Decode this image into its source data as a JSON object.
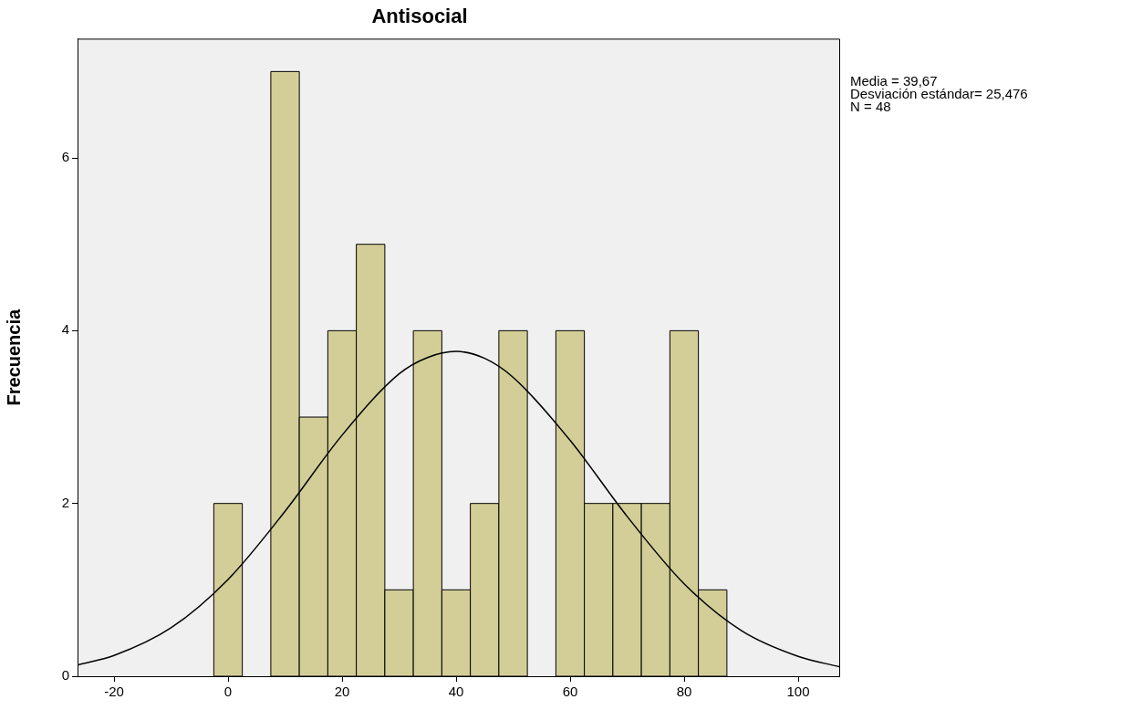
{
  "chart_data": {
    "type": "histogram",
    "title": "Antisocial",
    "ylabel": "Frecuencia",
    "xlim": [
      -26.4,
      107.2
    ],
    "xticks": [
      -20,
      0,
      20,
      40,
      60,
      80,
      100
    ],
    "ylim": [
      0,
      7.38
    ],
    "yticks": [
      0,
      2,
      4,
      6
    ],
    "grid": false,
    "legend": false,
    "annotations": [
      "Media = 39,67",
      "Desviación estándar= 25,476",
      "N = 48"
    ],
    "series": [
      {
        "type": "histogram",
        "color": "#d3ce97",
        "bins": [
          -2.5,
          2.5,
          7.5,
          12.5,
          17.5,
          22.5,
          27.5,
          32.5,
          37.5,
          42.5,
          47.5,
          52.5,
          57.5,
          62.5,
          67.5,
          72.5,
          77.5,
          82.5,
          87.5
        ],
        "values": [
          2,
          0,
          7,
          3,
          4,
          5,
          1,
          4,
          1,
          2,
          4,
          0,
          4,
          2,
          2,
          2,
          4,
          1
        ]
      },
      {
        "type": "line",
        "color": "#000000",
        "x": [
          -26.4,
          -20,
          -10,
          0,
          10,
          20,
          30,
          35,
          40,
          45,
          50,
          60,
          70,
          80,
          90,
          100,
          107.2
        ],
        "values": [
          0.13,
          0.24,
          0.56,
          1.12,
          1.91,
          2.79,
          3.5,
          3.69,
          3.76,
          3.68,
          3.46,
          2.73,
          1.85,
          1.07,
          0.53,
          0.23,
          0.11
        ]
      }
    ]
  }
}
